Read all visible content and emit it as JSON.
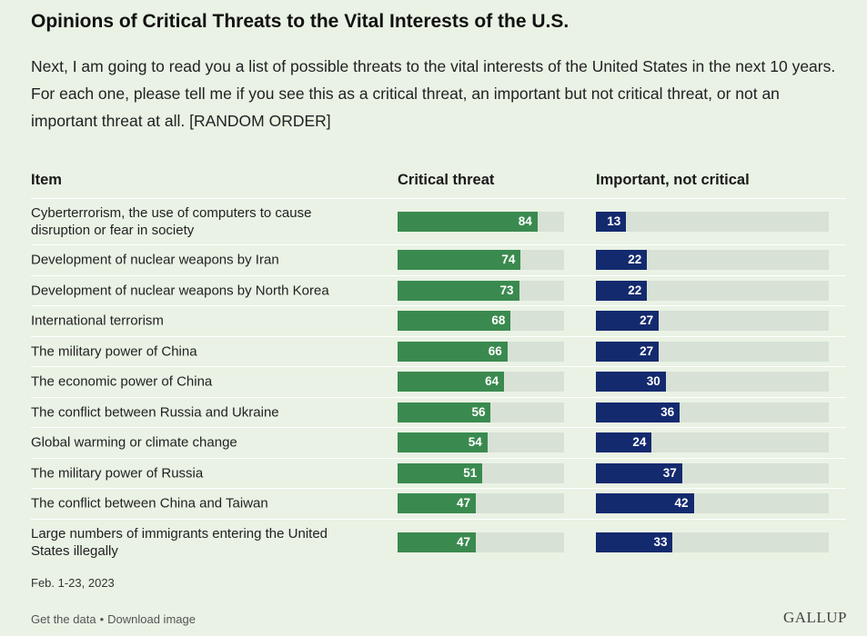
{
  "title": "Opinions of Critical Threats to the Vital Interests of the U.S.",
  "subtitle": "Next, I am going to read you a list of possible threats to the vital interests of the United States in the next 10 years. For each one, please tell me if you see this as a critical threat, an important but not critical threat, or not an important threat at all. [RANDOM ORDER]",
  "headers": {
    "item": "Item",
    "critical": "Critical threat",
    "important": "Important, not critical"
  },
  "date": "Feb. 1-23, 2023",
  "footer": {
    "get_data": "Get the data",
    "separator": "•",
    "download": "Download image"
  },
  "logo": "GALLUP",
  "colors": {
    "background": "#e9f2e4",
    "critical": "#3a8a4f",
    "important": "#142a6e",
    "track": "#d8e1d5"
  },
  "chart_data": {
    "type": "bar",
    "orientation": "horizontal",
    "scale_max": 100,
    "categories": [
      "Cyberterrorism, the use of computers to cause disruption or fear in society",
      "Development of nuclear weapons by Iran",
      "Development of nuclear weapons by North Korea",
      "International terrorism",
      "The military power of China",
      "The economic power of China",
      "The conflict between Russia and Ukraine",
      "Global warming or climate change",
      "The military power of Russia",
      "The conflict between China and Taiwan",
      "Large numbers of immigrants entering the United States illegally"
    ],
    "series": [
      {
        "name": "Critical threat",
        "values": [
          84,
          74,
          73,
          68,
          66,
          64,
          56,
          54,
          51,
          47,
          47
        ]
      },
      {
        "name": "Important, not critical",
        "values": [
          13,
          22,
          22,
          27,
          27,
          30,
          36,
          24,
          37,
          42,
          33
        ]
      }
    ]
  }
}
